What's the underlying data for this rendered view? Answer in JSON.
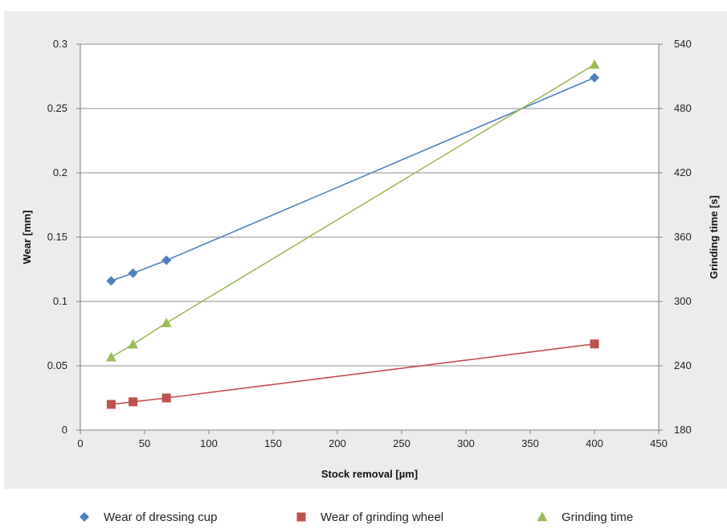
{
  "chart_data": {
    "type": "line",
    "xlabel": "Stock removal [µm]",
    "ylabel": "Wear [mm]",
    "y2label": "Grinding time [s]",
    "xlim": [
      0,
      450
    ],
    "xticks": [
      0,
      50,
      100,
      150,
      200,
      250,
      300,
      350,
      400,
      450
    ],
    "ylim": [
      0,
      0.3
    ],
    "yticks": [
      "0",
      "0.05",
      "0.1",
      "0.15",
      "0.2",
      "0.25",
      "0.3"
    ],
    "y2lim": [
      180,
      540
    ],
    "y2ticks": [
      180,
      240,
      300,
      360,
      420,
      480,
      540
    ],
    "grid": true,
    "legend_position": "bottom",
    "series": [
      {
        "name": "Wear of dressing cup",
        "axis": "left",
        "marker": "diamond",
        "color": "#4f81bd",
        "x": [
          24,
          41,
          67,
          400
        ],
        "y": [
          0.116,
          0.122,
          0.132,
          0.274
        ]
      },
      {
        "name": "Wear of grinding wheel",
        "axis": "left",
        "marker": "square",
        "color": "#c0504d",
        "x": [
          24,
          41,
          67,
          400
        ],
        "y": [
          0.02,
          0.022,
          0.025,
          0.067
        ]
      },
      {
        "name": "Grinding time",
        "axis": "right",
        "marker": "triangle",
        "color": "#9bbb59",
        "x": [
          24,
          41,
          67,
          400
        ],
        "y": [
          248,
          260,
          280,
          521
        ]
      }
    ]
  }
}
